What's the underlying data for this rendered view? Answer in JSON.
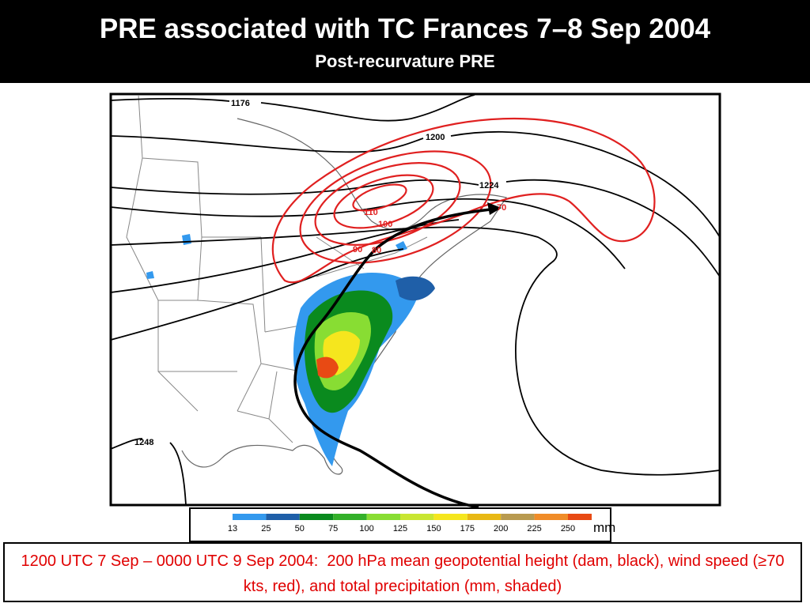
{
  "header": {
    "title": "PRE associated with TC Frances 7–8 Sep 2004",
    "subtitle": "Post-recurvature PRE"
  },
  "map": {
    "height_labels": [
      1176,
      1200,
      1224,
      1248
    ],
    "wind_labels": [
      110,
      100,
      90,
      80,
      70
    ]
  },
  "colorbar": {
    "ticks": [
      13,
      25,
      50,
      75,
      100,
      125,
      150,
      175,
      200,
      225,
      250
    ],
    "colors": [
      "#ffffff",
      "#3399ee",
      "#1f5fa8",
      "#0a8a1e",
      "#33b02a",
      "#88dd33",
      "#c8e632",
      "#f5e61e",
      "#e8b814",
      "#b89a50",
      "#f08c28",
      "#e84a14"
    ],
    "unit": "mm"
  },
  "caption": "1200 UTC 7 Sep – 0000 UTC 9 Sep 2004:  200 hPa mean geopotential height (dam, black), wind speed (≥70 kts, red), and total precipitation (mm, shaded)"
}
